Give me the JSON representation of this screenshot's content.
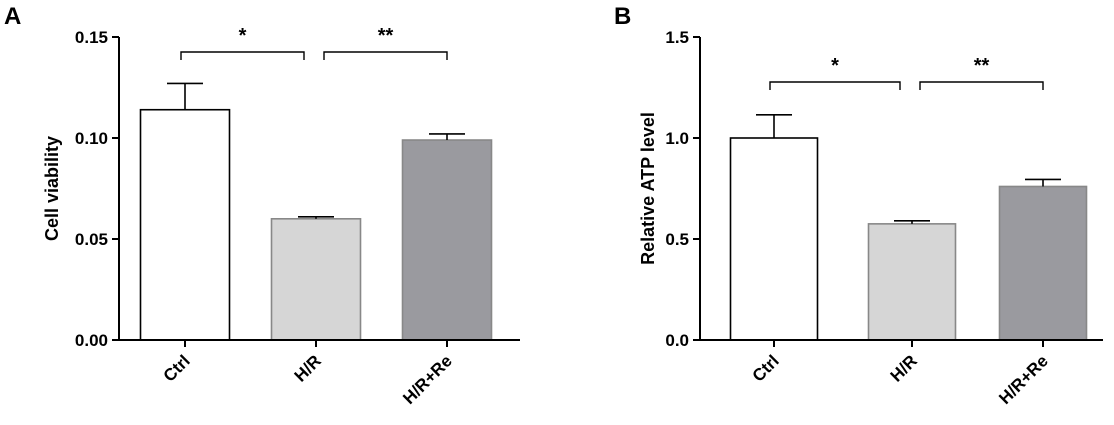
{
  "chart_data": [
    {
      "type": "bar",
      "panel": "A",
      "categories": [
        "Ctrl",
        "H/R",
        "H/R+Re"
      ],
      "values": [
        0.114,
        0.06,
        0.099
      ],
      "errors": [
        0.013,
        0.001,
        0.003
      ],
      "colors": [
        "#ffffff",
        "#d6d6d6",
        "#9a9a9f"
      ],
      "ylabel": "Cell viability",
      "ylim": [
        0,
        0.15
      ],
      "yticks": [
        "0.00",
        "0.05",
        "0.10",
        "0.15"
      ],
      "yticks_values": [
        0,
        0.05,
        0.1,
        0.15
      ],
      "significance": [
        {
          "from": 0,
          "to": 1,
          "label": "*"
        },
        {
          "from": 1,
          "to": 2,
          "label": "**"
        }
      ]
    },
    {
      "type": "bar",
      "panel": "B",
      "categories": [
        "Ctrl",
        "H/R",
        "H/R+Re"
      ],
      "values": [
        1.0,
        0.575,
        0.76
      ],
      "errors": [
        0.115,
        0.015,
        0.035
      ],
      "colors": [
        "#ffffff",
        "#d6d6d6",
        "#9a9a9f"
      ],
      "ylabel": "Relative ATP level",
      "ylim": [
        0,
        1.5
      ],
      "yticks": [
        "0.0",
        "0.5",
        "1.0",
        "1.5"
      ],
      "yticks_values": [
        0,
        0.5,
        1.0,
        1.5
      ],
      "significance": [
        {
          "from": 0,
          "to": 1,
          "label": "*"
        },
        {
          "from": 1,
          "to": 2,
          "label": "**"
        }
      ]
    }
  ]
}
